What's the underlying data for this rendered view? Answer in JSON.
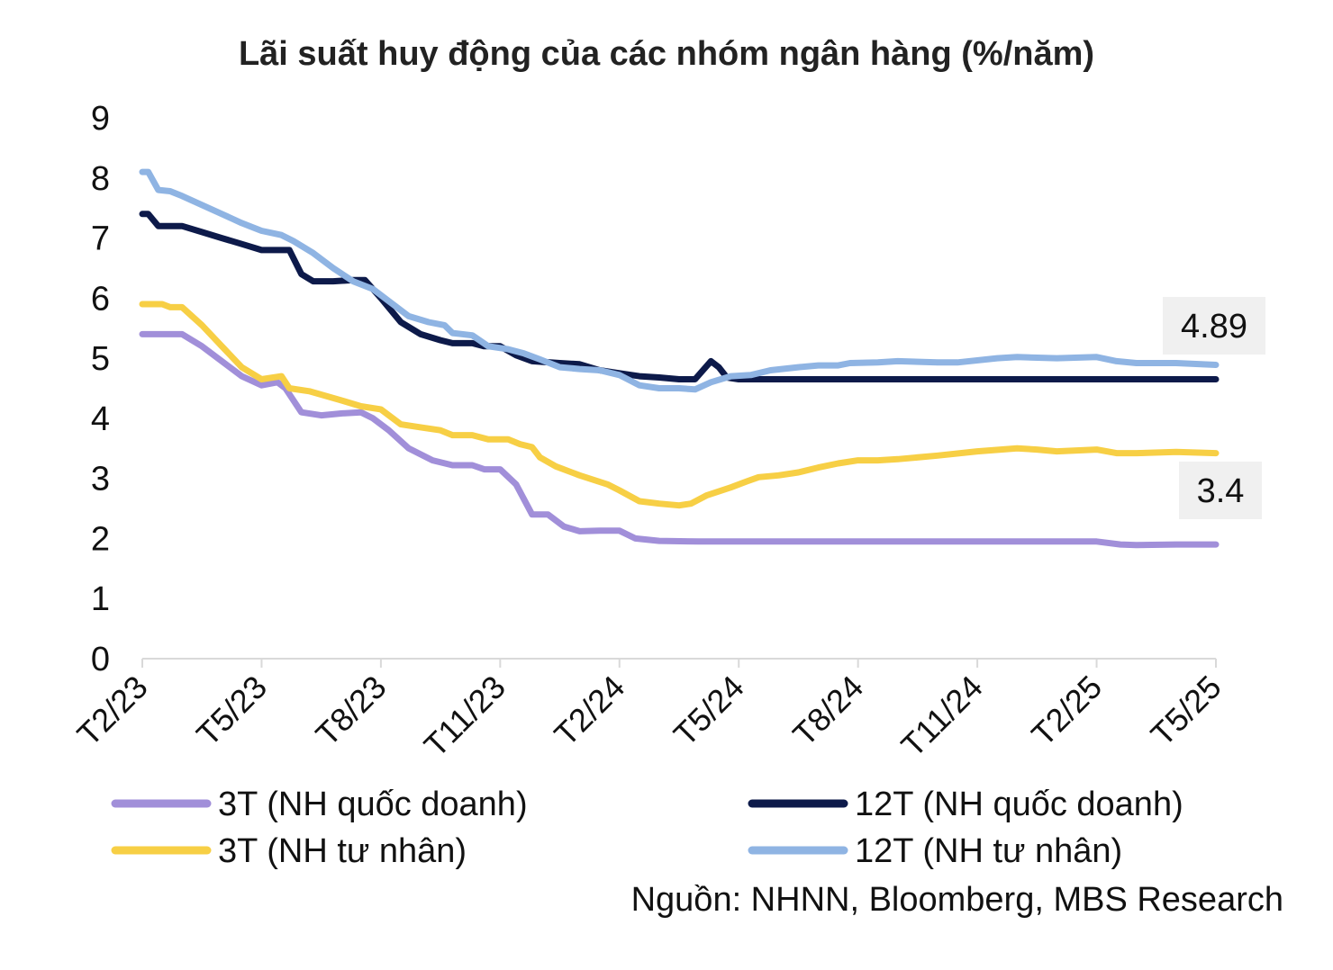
{
  "chart_data": {
    "type": "line",
    "title": "Lãi suất huy động của các nhóm ngân hàng (%/năm)",
    "xlabel": "",
    "ylabel": "",
    "ylim": [
      0,
      9
    ],
    "yticks": [
      0,
      1,
      2,
      3,
      4,
      5,
      6,
      7,
      8,
      9
    ],
    "xlim": [
      0,
      27
    ],
    "x_tick_labels": [
      "T2/23",
      "T5/23",
      "T8/23",
      "T11/23",
      "T2/24",
      "T5/24",
      "T8/24",
      "T11/24",
      "T2/25",
      "T5/25"
    ],
    "x_tick_positions": [
      0,
      3,
      6,
      9,
      12,
      15,
      18,
      21,
      24,
      27
    ],
    "grid": false,
    "legend_placement": "bottom",
    "series": [
      {
        "name": "3T (NH quốc doanh)",
        "color": "#a18fd9",
        "points": [
          [
            0,
            5.4
          ],
          [
            0.4,
            5.4
          ],
          [
            1,
            5.4
          ],
          [
            1.5,
            5.2
          ],
          [
            2,
            4.95
          ],
          [
            2.5,
            4.7
          ],
          [
            3,
            4.55
          ],
          [
            3.4,
            4.6
          ],
          [
            3.6,
            4.5
          ],
          [
            4,
            4.1
          ],
          [
            4.5,
            4.05
          ],
          [
            5,
            4.08
          ],
          [
            5.5,
            4.1
          ],
          [
            5.8,
            4.0
          ],
          [
            6.2,
            3.8
          ],
          [
            6.7,
            3.5
          ],
          [
            7.3,
            3.3
          ],
          [
            7.8,
            3.22
          ],
          [
            8.3,
            3.22
          ],
          [
            8.6,
            3.15
          ],
          [
            9,
            3.15
          ],
          [
            9.4,
            2.9
          ],
          [
            9.8,
            2.4
          ],
          [
            10.2,
            2.4
          ],
          [
            10.6,
            2.2
          ],
          [
            11,
            2.12
          ],
          [
            11.5,
            2.13
          ],
          [
            12,
            2.13
          ],
          [
            12.4,
            2.0
          ],
          [
            13,
            1.96
          ],
          [
            14,
            1.95
          ],
          [
            16,
            1.95
          ],
          [
            18,
            1.95
          ],
          [
            20,
            1.95
          ],
          [
            22,
            1.95
          ],
          [
            23.5,
            1.95
          ],
          [
            24,
            1.95
          ],
          [
            24.6,
            1.9
          ],
          [
            25,
            1.89
          ],
          [
            26,
            1.9
          ],
          [
            27,
            1.9
          ]
        ]
      },
      {
        "name": "3T (NH tư nhân)",
        "color": "#f7cf45",
        "points": [
          [
            0,
            5.9
          ],
          [
            0.5,
            5.9
          ],
          [
            0.7,
            5.85
          ],
          [
            1,
            5.85
          ],
          [
            1.5,
            5.55
          ],
          [
            2,
            5.2
          ],
          [
            2.5,
            4.85
          ],
          [
            3,
            4.65
          ],
          [
            3.5,
            4.7
          ],
          [
            3.7,
            4.5
          ],
          [
            4.2,
            4.45
          ],
          [
            5,
            4.3
          ],
          [
            5.5,
            4.2
          ],
          [
            6,
            4.15
          ],
          [
            6.5,
            3.9
          ],
          [
            7,
            3.85
          ],
          [
            7.5,
            3.8
          ],
          [
            7.8,
            3.72
          ],
          [
            8.3,
            3.72
          ],
          [
            8.7,
            3.65
          ],
          [
            9.2,
            3.65
          ],
          [
            9.5,
            3.57
          ],
          [
            9.8,
            3.52
          ],
          [
            10,
            3.35
          ],
          [
            10.4,
            3.2
          ],
          [
            11,
            3.05
          ],
          [
            11.7,
            2.9
          ],
          [
            12,
            2.8
          ],
          [
            12.5,
            2.62
          ],
          [
            13,
            2.58
          ],
          [
            13.5,
            2.55
          ],
          [
            13.8,
            2.58
          ],
          [
            14.2,
            2.72
          ],
          [
            14.8,
            2.85
          ],
          [
            15.2,
            2.95
          ],
          [
            15.5,
            3.02
          ],
          [
            16,
            3.05
          ],
          [
            16.5,
            3.1
          ],
          [
            17,
            3.18
          ],
          [
            17.5,
            3.25
          ],
          [
            18,
            3.3
          ],
          [
            18.5,
            3.3
          ],
          [
            19,
            3.32
          ],
          [
            20,
            3.38
          ],
          [
            21,
            3.45
          ],
          [
            22,
            3.5
          ],
          [
            22.5,
            3.48
          ],
          [
            23,
            3.45
          ],
          [
            24,
            3.48
          ],
          [
            24.5,
            3.42
          ],
          [
            25,
            3.42
          ],
          [
            26,
            3.44
          ],
          [
            27,
            3.42
          ]
        ]
      },
      {
        "name": "12T (NH quốc doanh)",
        "color": "#0d1a4a",
        "points": [
          [
            0,
            7.4
          ],
          [
            0.15,
            7.4
          ],
          [
            0.4,
            7.2
          ],
          [
            0.7,
            7.2
          ],
          [
            1,
            7.2
          ],
          [
            1.5,
            7.1
          ],
          [
            2,
            7.0
          ],
          [
            2.5,
            6.9
          ],
          [
            3,
            6.8
          ],
          [
            3.4,
            6.8
          ],
          [
            3.7,
            6.8
          ],
          [
            4,
            6.4
          ],
          [
            4.3,
            6.28
          ],
          [
            4.8,
            6.28
          ],
          [
            5.3,
            6.3
          ],
          [
            5.6,
            6.3
          ],
          [
            6,
            6.0
          ],
          [
            6.5,
            5.6
          ],
          [
            7,
            5.4
          ],
          [
            7.5,
            5.3
          ],
          [
            7.8,
            5.25
          ],
          [
            8.3,
            5.25
          ],
          [
            8.6,
            5.2
          ],
          [
            9,
            5.2
          ],
          [
            9.4,
            5.05
          ],
          [
            9.8,
            4.95
          ],
          [
            10.5,
            4.92
          ],
          [
            11,
            4.9
          ],
          [
            11.5,
            4.8
          ],
          [
            12,
            4.75
          ],
          [
            12.5,
            4.7
          ],
          [
            13,
            4.68
          ],
          [
            13.5,
            4.65
          ],
          [
            13.9,
            4.65
          ],
          [
            14.3,
            4.95
          ],
          [
            14.5,
            4.85
          ],
          [
            14.7,
            4.68
          ],
          [
            15,
            4.65
          ],
          [
            16,
            4.65
          ],
          [
            18,
            4.65
          ],
          [
            20,
            4.65
          ],
          [
            22,
            4.65
          ],
          [
            24,
            4.65
          ],
          [
            26,
            4.65
          ],
          [
            27,
            4.65
          ]
        ]
      },
      {
        "name": "12T (NH tư nhân)",
        "color": "#8fb4e3",
        "points": [
          [
            0,
            8.1
          ],
          [
            0.15,
            8.1
          ],
          [
            0.4,
            7.8
          ],
          [
            0.7,
            7.78
          ],
          [
            1,
            7.7
          ],
          [
            1.5,
            7.55
          ],
          [
            2,
            7.4
          ],
          [
            2.5,
            7.25
          ],
          [
            3,
            7.12
          ],
          [
            3.5,
            7.05
          ],
          [
            3.8,
            6.95
          ],
          [
            4.3,
            6.75
          ],
          [
            4.8,
            6.5
          ],
          [
            5.3,
            6.28
          ],
          [
            5.8,
            6.15
          ],
          [
            6.2,
            5.95
          ],
          [
            6.7,
            5.7
          ],
          [
            7.2,
            5.6
          ],
          [
            7.6,
            5.55
          ],
          [
            7.8,
            5.42
          ],
          [
            8.3,
            5.38
          ],
          [
            8.7,
            5.2
          ],
          [
            9.2,
            5.15
          ],
          [
            9.6,
            5.08
          ],
          [
            10,
            4.98
          ],
          [
            10.5,
            4.85
          ],
          [
            11,
            4.82
          ],
          [
            11.5,
            4.8
          ],
          [
            12,
            4.72
          ],
          [
            12.5,
            4.55
          ],
          [
            13,
            4.5
          ],
          [
            13.5,
            4.5
          ],
          [
            13.9,
            4.48
          ],
          [
            14.3,
            4.6
          ],
          [
            14.8,
            4.7
          ],
          [
            15.3,
            4.72
          ],
          [
            15.8,
            4.8
          ],
          [
            16.5,
            4.85
          ],
          [
            17,
            4.88
          ],
          [
            17.5,
            4.88
          ],
          [
            17.8,
            4.92
          ],
          [
            18.5,
            4.93
          ],
          [
            19,
            4.95
          ],
          [
            20,
            4.93
          ],
          [
            20.5,
            4.93
          ],
          [
            21.5,
            5.0
          ],
          [
            22,
            5.02
          ],
          [
            23,
            5.0
          ],
          [
            24,
            5.02
          ],
          [
            24.5,
            4.95
          ],
          [
            25,
            4.92
          ],
          [
            26,
            4.92
          ],
          [
            27,
            4.89
          ]
        ]
      }
    ],
    "callouts": [
      {
        "text": "4.89",
        "value": 4.89
      },
      {
        "text": "3.4",
        "value": 3.4
      }
    ],
    "source": "Nguồn: NHNN, Bloomberg, MBS Research"
  }
}
